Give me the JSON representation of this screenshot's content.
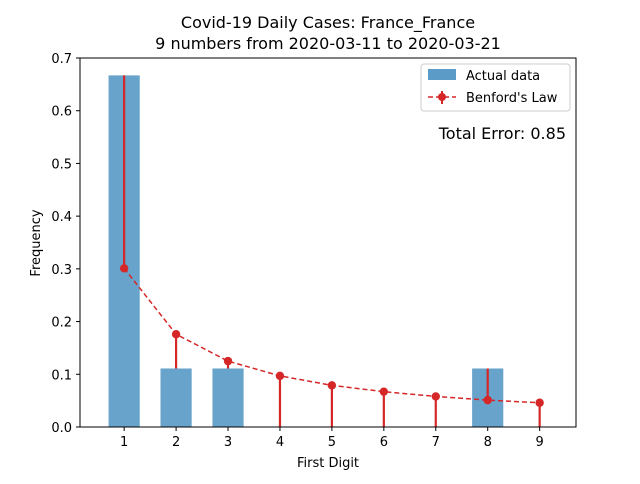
{
  "chart_data": {
    "type": "bar",
    "title_line1": "Covid-19 Daily Cases: France_France",
    "title_line2": "9 numbers from 2020-03-11 to 2020-03-21",
    "xlabel": "First Digit",
    "ylabel": "Frequency",
    "categories": [
      "1",
      "2",
      "3",
      "4",
      "5",
      "6",
      "7",
      "8",
      "9"
    ],
    "x": [
      1,
      2,
      3,
      4,
      5,
      6,
      7,
      8,
      9
    ],
    "xlim": [
      0.15,
      9.7
    ],
    "ylim": [
      0,
      0.7
    ],
    "yticks": [
      0.0,
      0.1,
      0.2,
      0.3,
      0.4,
      0.5,
      0.6,
      0.7
    ],
    "ytick_labels": [
      "0.0",
      "0.1",
      "0.2",
      "0.3",
      "0.4",
      "0.5",
      "0.6",
      "0.7"
    ],
    "grid": false,
    "legend_position": "top-right",
    "series": [
      {
        "name": "Actual data",
        "type": "bar",
        "color": "#5a9bc7",
        "values": [
          0.667,
          0.111,
          0.111,
          0.0,
          0.0,
          0.0,
          0.0,
          0.111,
          0.0
        ]
      },
      {
        "name": "Benford's Law",
        "type": "line",
        "style": "dashed",
        "marker": "circle",
        "color": "#d62728",
        "values": [
          0.301,
          0.176,
          0.125,
          0.097,
          0.079,
          0.067,
          0.058,
          0.051,
          0.046
        ]
      }
    ],
    "annotation": {
      "text": "Total Error: 0.85",
      "color": "#d62728"
    }
  }
}
